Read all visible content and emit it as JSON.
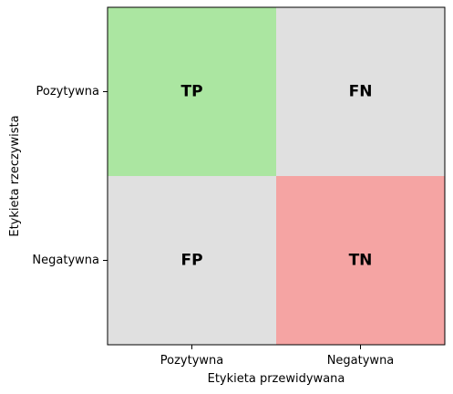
{
  "chart_data": {
    "type": "heatmap",
    "title": "",
    "xlabel": "Etykieta przewidywana",
    "ylabel": "Etykieta rzeczywista",
    "x_categories": [
      "Pozytywna",
      "Negatywna"
    ],
    "y_categories": [
      "Pozytywna",
      "Negatywna"
    ],
    "cells": [
      {
        "row": 0,
        "col": 0,
        "label": "TP",
        "color": "#abe6a1"
      },
      {
        "row": 0,
        "col": 1,
        "label": "FN",
        "color": "#e0e0e0"
      },
      {
        "row": 1,
        "col": 0,
        "label": "FP",
        "color": "#e0e0e0"
      },
      {
        "row": 1,
        "col": 1,
        "label": "TN",
        "color": "#f5a4a3"
      }
    ],
    "grid": false,
    "legend": "none"
  }
}
